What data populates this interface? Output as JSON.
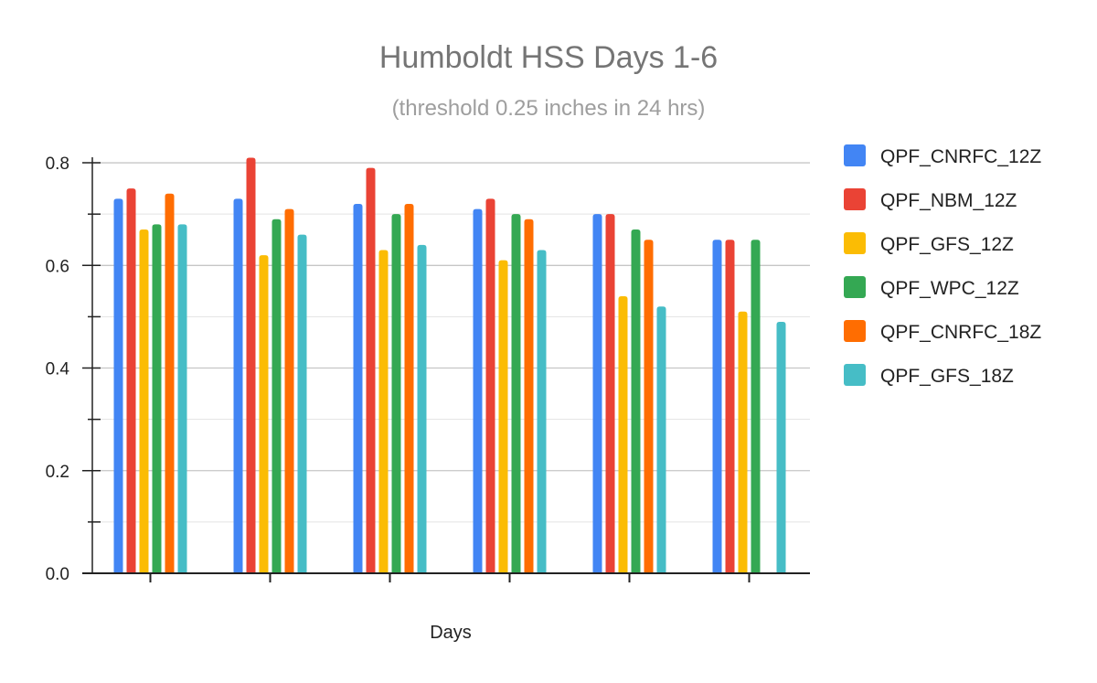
{
  "chart_data": {
    "type": "bar",
    "title": "Humboldt HSS Days 1-6",
    "subtitle": "(threshold 0.25 inches in 24 hrs)",
    "xlabel": "Days",
    "ylabel": "",
    "categories": [
      "",
      "",
      "",
      "",
      "",
      ""
    ],
    "ylim": [
      0,
      0.85
    ],
    "yticks": [
      {
        "value": 0,
        "label": "0.0"
      },
      {
        "value": 0.2,
        "label": "0.2"
      },
      {
        "value": 0.4,
        "label": "0.4"
      },
      {
        "value": 0.6,
        "label": "0.6"
      },
      {
        "value": 0.8,
        "label": "0.8"
      }
    ],
    "minor_gridlines": [
      0.1,
      0.3,
      0.5,
      0.7
    ],
    "grid": true,
    "legend_position": "right",
    "series": [
      {
        "name": "QPF_CNRFC_12Z",
        "color": "#4285f4",
        "values": [
          0.73,
          0.73,
          0.72,
          0.71,
          0.7,
          0.65
        ]
      },
      {
        "name": "QPF_NBM_12Z",
        "color": "#ea4335",
        "values": [
          0.75,
          0.81,
          0.79,
          0.73,
          0.7,
          0.65
        ]
      },
      {
        "name": "QPF_GFS_12Z",
        "color": "#fbbc04",
        "values": [
          0.67,
          0.62,
          0.63,
          0.61,
          0.54,
          0.51
        ]
      },
      {
        "name": "QPF_WPC_12Z",
        "color": "#34a853",
        "values": [
          0.68,
          0.69,
          0.7,
          0.7,
          0.67,
          0.65
        ]
      },
      {
        "name": "QPF_CNRFC_18Z",
        "color": "#ff6d01",
        "values": [
          0.74,
          0.71,
          0.72,
          0.69,
          0.65,
          null
        ]
      },
      {
        "name": "QPF_GFS_18Z",
        "color": "#46bdc6",
        "values": [
          0.68,
          0.66,
          0.64,
          0.63,
          0.52,
          0.49
        ]
      }
    ]
  }
}
